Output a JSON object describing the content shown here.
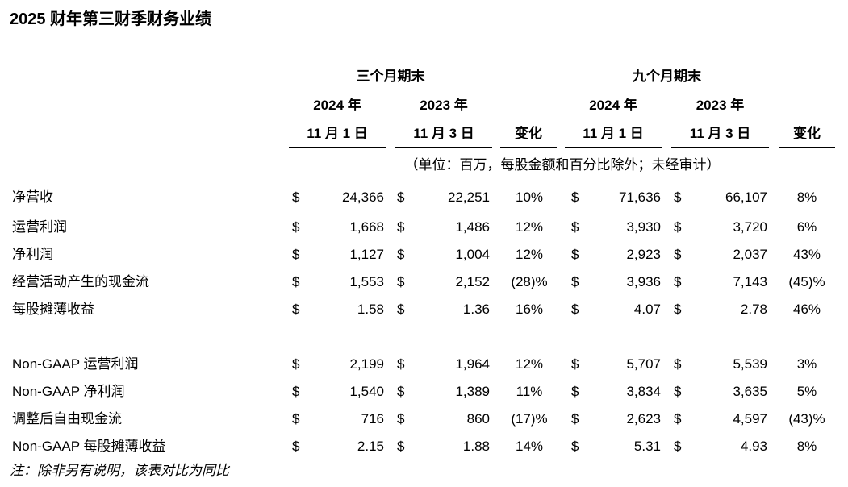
{
  "header": {
    "title": "2025 财年第三财季财务业绩"
  },
  "table": {
    "groups": [
      "三个月期末",
      "九个月期末"
    ],
    "column_headers": [
      [
        "2024 年",
        "11 月 1 日"
      ],
      [
        "2023 年",
        "11 月 3 日"
      ],
      [
        "变化"
      ],
      [
        "2024 年",
        "11 月 1 日"
      ],
      [
        "2023 年",
        "11 月 3 日"
      ],
      [
        "变化"
      ]
    ],
    "unit_note": "（单位：百万，每股金额和百分比除外；未经审计）",
    "rows": [
      {
        "label": "净营收",
        "cells": [
          "$",
          "24,366",
          "$",
          "22,251",
          "10%",
          "$",
          "71,636",
          "$",
          "66,107",
          "8%"
        ]
      },
      {
        "label": "运营利润",
        "cells": [
          "$",
          "1,668",
          "$",
          "1,486",
          "12%",
          "$",
          "3,930",
          "$",
          "3,720",
          "6%"
        ]
      },
      {
        "label": "净利润",
        "cells": [
          "$",
          "1,127",
          "$",
          "1,004",
          "12%",
          "$",
          "2,923",
          "$",
          "2,037",
          "43%"
        ]
      },
      {
        "label": "经营活动产生的现金流",
        "cells": [
          "$",
          "1,553",
          "$",
          "2,152",
          "(28)%",
          "$",
          "3,936",
          "$",
          "7,143",
          "(45)%"
        ]
      },
      {
        "label": "每股摊薄收益",
        "cells": [
          "$",
          "1.58",
          "$",
          "1.36",
          "16%",
          "$",
          "4.07",
          "$",
          "2.78",
          "46%"
        ]
      },
      {
        "label": "Non-GAAP 运营利润",
        "cells": [
          "$",
          "2,199",
          "$",
          "1,964",
          "12%",
          "$",
          "5,707",
          "$",
          "5,539",
          "3%"
        ]
      },
      {
        "label": "Non-GAAP 净利润",
        "cells": [
          "$",
          "1,540",
          "$",
          "1,389",
          "11%",
          "$",
          "3,834",
          "$",
          "3,635",
          "5%"
        ]
      },
      {
        "label": "调整后自由现金流",
        "cells": [
          "$",
          "716",
          "$",
          "860",
          "(17)%",
          "$",
          "2,623",
          "$",
          "4,597",
          "(43)%"
        ]
      },
      {
        "label": "Non-GAAP 每股摊薄收益",
        "cells": [
          "$",
          "2.15",
          "$",
          "1.88",
          "14%",
          "$",
          "5.31",
          "$",
          "4.93",
          "8%"
        ]
      }
    ],
    "footnote": "注：除非另有说明，该表对比为同比"
  }
}
